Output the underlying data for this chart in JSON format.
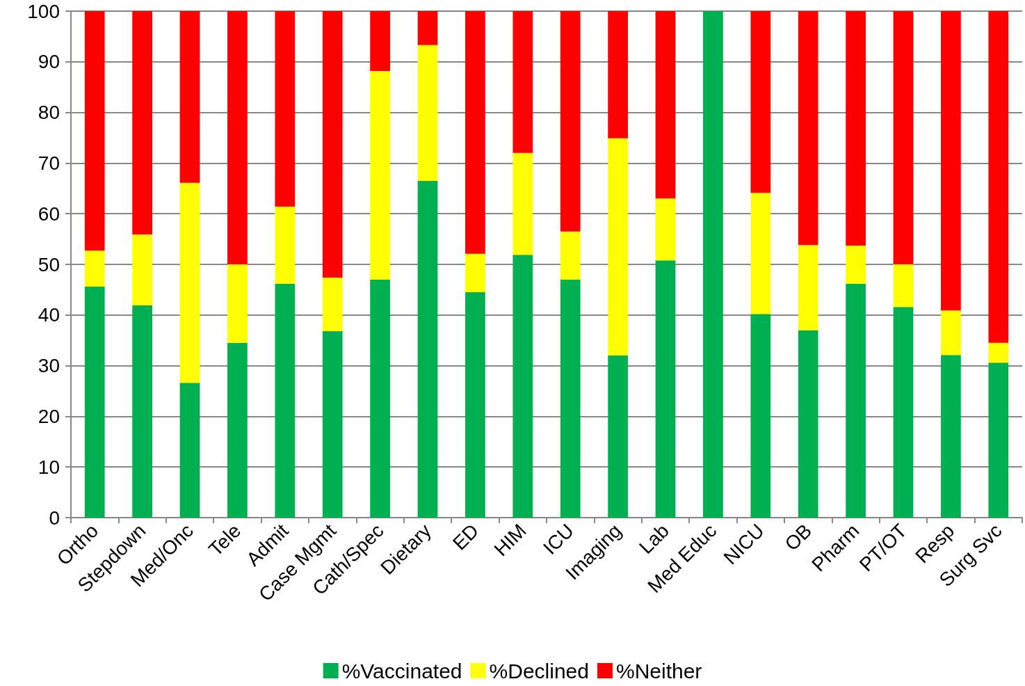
{
  "chart_data": {
    "type": "bar",
    "stacked": true,
    "categories": [
      "Ortho",
      "Stepdown",
      "Med/Onc",
      "Tele",
      "Admit",
      "Case Mgmt",
      "Cath/Spec",
      "Dietary",
      "ED",
      "HIM",
      "ICU",
      "Imaging",
      "Lab",
      "Med Educ",
      "NICU",
      "OB",
      "Pharm",
      "PT/OT",
      "Resp",
      "Surg Svc"
    ],
    "series": [
      {
        "name": "%Vaccinated",
        "color": "#00b050",
        "values": [
          45.6,
          41.9,
          26.6,
          34.5,
          46.2,
          36.8,
          47.0,
          66.5,
          44.5,
          51.9,
          47.0,
          32.0,
          50.8,
          100,
          40.2,
          37.0,
          46.2,
          41.6,
          32.1,
          30.6
        ]
      },
      {
        "name": "%Declined",
        "color": "#ffff00",
        "values": [
          7.1,
          14.0,
          39.5,
          15.5,
          15.2,
          10.6,
          41.2,
          26.8,
          7.6,
          20.1,
          9.5,
          42.9,
          12.2,
          0,
          23.9,
          16.8,
          7.5,
          8.4,
          8.8,
          3.9
        ]
      },
      {
        "name": "%Neither",
        "color": "#ff0000",
        "values": [
          47.3,
          44.1,
          33.9,
          50.0,
          38.6,
          52.6,
          11.8,
          6.7,
          47.9,
          28.0,
          43.5,
          25.1,
          37.0,
          0,
          35.9,
          46.2,
          46.3,
          50.0,
          59.1,
          65.5
        ]
      }
    ],
    "ylim": [
      0,
      100
    ],
    "yticks": [
      0,
      10,
      20,
      30,
      40,
      50,
      60,
      70,
      80,
      90,
      100
    ],
    "grid": "y",
    "legend": "bottom"
  }
}
